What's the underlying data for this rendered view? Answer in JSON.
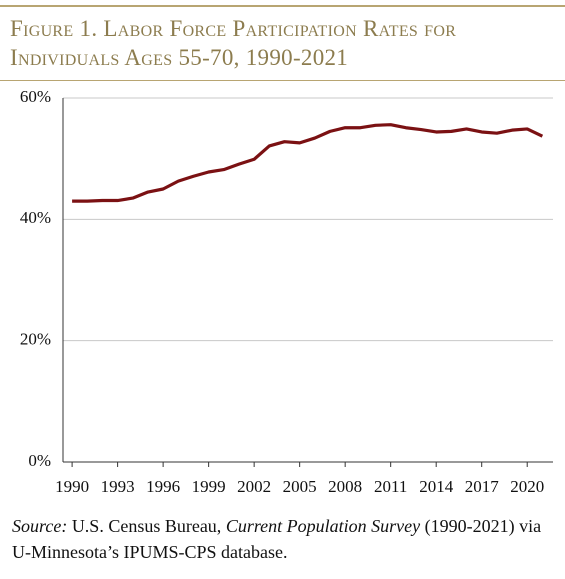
{
  "chart_data": {
    "type": "line",
    "title": "Figure 1. Labor Force Participation Rates for Individuals Ages 55-70, 1990-2021",
    "x": [
      1990,
      1991,
      1992,
      1993,
      1994,
      1995,
      1996,
      1997,
      1998,
      1999,
      2000,
      2001,
      2002,
      2003,
      2004,
      2005,
      2006,
      2007,
      2008,
      2009,
      2010,
      2011,
      2012,
      2013,
      2014,
      2015,
      2016,
      2017,
      2018,
      2019,
      2020,
      2021
    ],
    "series": [
      {
        "color": "#7b1113",
        "values": [
          43.0,
          43.0,
          43.1,
          43.1,
          43.5,
          44.5,
          45.0,
          46.3,
          47.1,
          47.8,
          48.2,
          49.1,
          49.9,
          52.1,
          52.8,
          52.6,
          53.4,
          54.5,
          55.1,
          55.1,
          55.5,
          55.6,
          55.1,
          54.8,
          54.4,
          54.5,
          54.9,
          54.4,
          54.2,
          54.7,
          54.9,
          53.7
        ]
      }
    ],
    "xlim": [
      1989.4,
      2021.7
    ],
    "xticks": [
      1990,
      1993,
      1996,
      1999,
      2002,
      2005,
      2008,
      2011,
      2014,
      2017,
      2020
    ],
    "ylim": [
      0,
      60
    ],
    "yticks": [
      {
        "value": 0,
        "label": "0%"
      },
      {
        "value": 20,
        "label": "20%"
      },
      {
        "value": 40,
        "label": "40%"
      },
      {
        "value": 60,
        "label": "60%"
      }
    ],
    "grid": true,
    "source_label": "Source:",
    "source_agency": "U.S. Census Bureau,",
    "source_survey": "Current Population Survey",
    "source_detail": "(1990-2021) via U-Minnesota’s IPUMS-CPS database."
  }
}
